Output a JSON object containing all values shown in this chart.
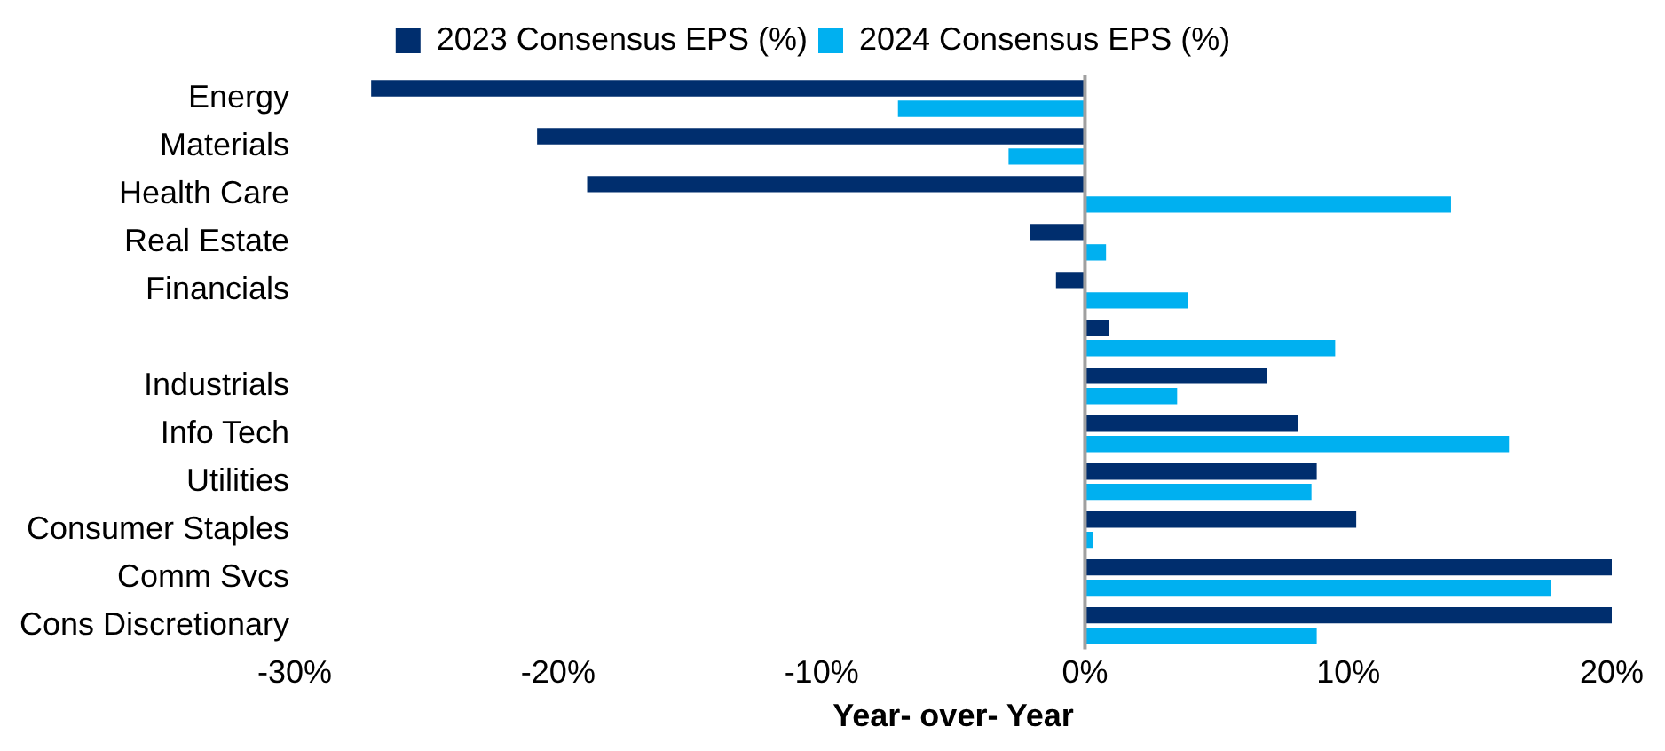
{
  "chart_data": {
    "type": "bar",
    "orientation": "horizontal",
    "categories": [
      "Energy",
      "Materials",
      "Health Care",
      "Real Estate",
      "Financials",
      null,
      "Industrials",
      "Info Tech",
      "Utilities",
      "Consumer Staples",
      "Comm Svcs",
      "Cons Discretionary"
    ],
    "series": [
      {
        "name": "2023 Consensus EPS (%)",
        "color": "#002e6e",
        "values": [
          -27.1,
          -20.8,
          -18.9,
          -2.1,
          -1.1,
          0.9,
          6.9,
          8.1,
          8.8,
          10.3,
          20,
          20
        ]
      },
      {
        "name": "2024 Consensus EPS (%)",
        "color": "#00b0f0",
        "values": [
          -7.1,
          -2.9,
          13.9,
          0.8,
          3.9,
          9.5,
          3.5,
          16.1,
          8.6,
          0.3,
          17.7,
          8.8
        ]
      }
    ],
    "xlim": [
      -30,
      20
    ],
    "xticks": [
      {
        "value": -30,
        "label": "-30%"
      },
      {
        "value": -20,
        "label": "-20%"
      },
      {
        "value": -10,
        "label": "-10%"
      },
      {
        "value": 0,
        "label": "0%"
      },
      {
        "value": 10,
        "label": "10%"
      },
      {
        "value": 20,
        "label": "20%"
      }
    ],
    "xlabel": "Year- over- Year",
    "legend": "top",
    "grid": false,
    "ref_lines": [
      {
        "axis": "x",
        "value": 0,
        "color": "#a0a0a0"
      }
    ]
  }
}
